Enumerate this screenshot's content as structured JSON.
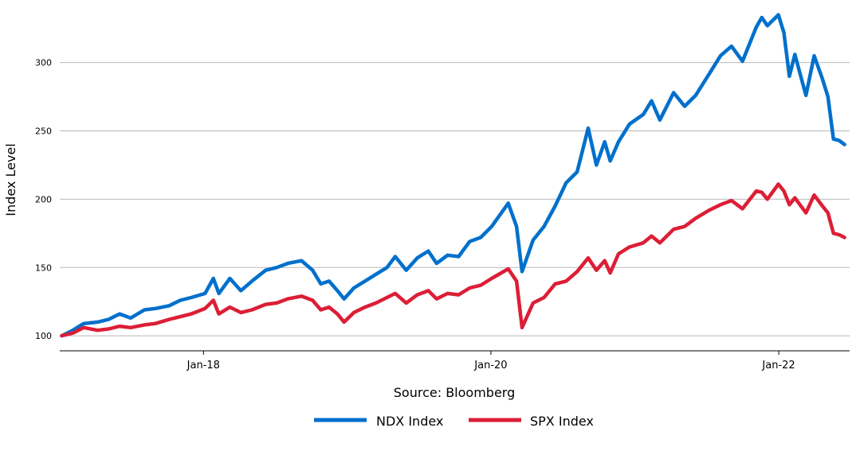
{
  "chart_data": {
    "type": "line",
    "title": "",
    "xlabel": "Source: Bloomberg",
    "ylabel": "Index Level",
    "grid": "horizontal",
    "legend_position": "bottom-center",
    "xlim": [
      "2017-01-01",
      "2022-06-30"
    ],
    "ylim": [
      89,
      340
    ],
    "x_ticks": [
      {
        "date": "2018-01-01",
        "label": "Jan-18"
      },
      {
        "date": "2020-01-01",
        "label": "Jan-20"
      },
      {
        "date": "2022-01-01",
        "label": "Jan-22"
      }
    ],
    "y_ticks": [
      100,
      150,
      200,
      250,
      300
    ],
    "series": [
      {
        "name": "NDX Index",
        "color": "#0070cc",
        "points": [
          [
            "2017-01-06",
            100
          ],
          [
            "2017-02-03",
            104
          ],
          [
            "2017-03-03",
            109
          ],
          [
            "2017-04-07",
            110
          ],
          [
            "2017-05-05",
            112
          ],
          [
            "2017-06-02",
            116
          ],
          [
            "2017-06-30",
            113
          ],
          [
            "2017-08-04",
            119
          ],
          [
            "2017-09-01",
            120
          ],
          [
            "2017-10-06",
            122
          ],
          [
            "2017-11-03",
            126
          ],
          [
            "2017-12-01",
            128
          ],
          [
            "2018-01-05",
            131
          ],
          [
            "2018-01-26",
            142
          ],
          [
            "2018-02-09",
            131
          ],
          [
            "2018-03-09",
            142
          ],
          [
            "2018-04-06",
            133
          ],
          [
            "2018-05-04",
            140
          ],
          [
            "2018-06-08",
            148
          ],
          [
            "2018-07-06",
            150
          ],
          [
            "2018-08-03",
            153
          ],
          [
            "2018-09-07",
            155
          ],
          [
            "2018-10-05",
            148
          ],
          [
            "2018-10-26",
            138
          ],
          [
            "2018-11-16",
            140
          ],
          [
            "2018-12-07",
            133
          ],
          [
            "2018-12-24",
            127
          ],
          [
            "2019-01-18",
            135
          ],
          [
            "2019-02-15",
            140
          ],
          [
            "2019-03-15",
            145
          ],
          [
            "2019-04-12",
            150
          ],
          [
            "2019-05-03",
            158
          ],
          [
            "2019-05-31",
            148
          ],
          [
            "2019-06-28",
            157
          ],
          [
            "2019-07-26",
            162
          ],
          [
            "2019-08-16",
            153
          ],
          [
            "2019-09-13",
            159
          ],
          [
            "2019-10-11",
            158
          ],
          [
            "2019-11-08",
            169
          ],
          [
            "2019-12-06",
            172
          ],
          [
            "2020-01-03",
            180
          ],
          [
            "2020-02-14",
            197
          ],
          [
            "2020-03-06",
            180
          ],
          [
            "2020-03-20",
            147
          ],
          [
            "2020-04-17",
            170
          ],
          [
            "2020-05-15",
            180
          ],
          [
            "2020-06-12",
            195
          ],
          [
            "2020-07-10",
            212
          ],
          [
            "2020-08-07",
            220
          ],
          [
            "2020-09-04",
            252
          ],
          [
            "2020-09-25",
            225
          ],
          [
            "2020-10-16",
            242
          ],
          [
            "2020-10-30",
            228
          ],
          [
            "2020-11-20",
            242
          ],
          [
            "2020-12-18",
            255
          ],
          [
            "2021-01-22",
            262
          ],
          [
            "2021-02-12",
            272
          ],
          [
            "2021-03-05",
            258
          ],
          [
            "2021-04-09",
            278
          ],
          [
            "2021-05-07",
            268
          ],
          [
            "2021-06-04",
            276
          ],
          [
            "2021-07-09",
            292
          ],
          [
            "2021-08-06",
            305
          ],
          [
            "2021-09-03",
            312
          ],
          [
            "2021-10-01",
            301
          ],
          [
            "2021-11-05",
            326
          ],
          [
            "2021-11-19",
            333
          ],
          [
            "2021-12-03",
            327
          ],
          [
            "2021-12-31",
            335
          ],
          [
            "2022-01-14",
            322
          ],
          [
            "2022-01-28",
            290
          ],
          [
            "2022-02-11",
            306
          ],
          [
            "2022-03-11",
            276
          ],
          [
            "2022-04-01",
            305
          ],
          [
            "2022-04-22",
            288
          ],
          [
            "2022-05-06",
            275
          ],
          [
            "2022-05-20",
            244
          ],
          [
            "2022-06-03",
            243
          ],
          [
            "2022-06-17",
            240
          ]
        ]
      },
      {
        "name": "SPX Index",
        "color": "#dc1e36",
        "points": [
          [
            "2017-01-06",
            100
          ],
          [
            "2017-02-03",
            102
          ],
          [
            "2017-03-03",
            106
          ],
          [
            "2017-04-07",
            104
          ],
          [
            "2017-05-05",
            105
          ],
          [
            "2017-06-02",
            107
          ],
          [
            "2017-06-30",
            106
          ],
          [
            "2017-08-04",
            108
          ],
          [
            "2017-09-01",
            109
          ],
          [
            "2017-10-06",
            112
          ],
          [
            "2017-11-03",
            114
          ],
          [
            "2017-12-01",
            116
          ],
          [
            "2018-01-05",
            120
          ],
          [
            "2018-01-26",
            126
          ],
          [
            "2018-02-09",
            116
          ],
          [
            "2018-03-09",
            121
          ],
          [
            "2018-04-06",
            117
          ],
          [
            "2018-05-04",
            119
          ],
          [
            "2018-06-08",
            123
          ],
          [
            "2018-07-06",
            124
          ],
          [
            "2018-08-03",
            127
          ],
          [
            "2018-09-07",
            129
          ],
          [
            "2018-10-05",
            126
          ],
          [
            "2018-10-26",
            119
          ],
          [
            "2018-11-16",
            121
          ],
          [
            "2018-12-07",
            116
          ],
          [
            "2018-12-24",
            110
          ],
          [
            "2019-01-18",
            117
          ],
          [
            "2019-02-15",
            121
          ],
          [
            "2019-03-15",
            124
          ],
          [
            "2019-04-12",
            128
          ],
          [
            "2019-05-03",
            131
          ],
          [
            "2019-05-31",
            124
          ],
          [
            "2019-06-28",
            130
          ],
          [
            "2019-07-26",
            133
          ],
          [
            "2019-08-16",
            127
          ],
          [
            "2019-09-13",
            131
          ],
          [
            "2019-10-11",
            130
          ],
          [
            "2019-11-08",
            135
          ],
          [
            "2019-12-06",
            137
          ],
          [
            "2020-01-03",
            142
          ],
          [
            "2020-02-14",
            149
          ],
          [
            "2020-03-06",
            140
          ],
          [
            "2020-03-20",
            106
          ],
          [
            "2020-04-17",
            124
          ],
          [
            "2020-05-15",
            128
          ],
          [
            "2020-06-12",
            138
          ],
          [
            "2020-07-10",
            140
          ],
          [
            "2020-08-07",
            147
          ],
          [
            "2020-09-04",
            157
          ],
          [
            "2020-09-25",
            148
          ],
          [
            "2020-10-16",
            155
          ],
          [
            "2020-10-30",
            146
          ],
          [
            "2020-11-20",
            160
          ],
          [
            "2020-12-18",
            165
          ],
          [
            "2021-01-22",
            168
          ],
          [
            "2021-02-12",
            173
          ],
          [
            "2021-03-05",
            168
          ],
          [
            "2021-04-09",
            178
          ],
          [
            "2021-05-07",
            180
          ],
          [
            "2021-06-04",
            186
          ],
          [
            "2021-07-09",
            192
          ],
          [
            "2021-08-06",
            196
          ],
          [
            "2021-09-03",
            199
          ],
          [
            "2021-10-01",
            193
          ],
          [
            "2021-11-05",
            206
          ],
          [
            "2021-11-19",
            205
          ],
          [
            "2021-12-03",
            200
          ],
          [
            "2021-12-31",
            211
          ],
          [
            "2022-01-14",
            206
          ],
          [
            "2022-01-28",
            196
          ],
          [
            "2022-02-11",
            201
          ],
          [
            "2022-03-11",
            190
          ],
          [
            "2022-04-01",
            203
          ],
          [
            "2022-04-22",
            195
          ],
          [
            "2022-05-06",
            190
          ],
          [
            "2022-05-20",
            175
          ],
          [
            "2022-06-03",
            174
          ],
          [
            "2022-06-17",
            172
          ]
        ]
      }
    ]
  }
}
